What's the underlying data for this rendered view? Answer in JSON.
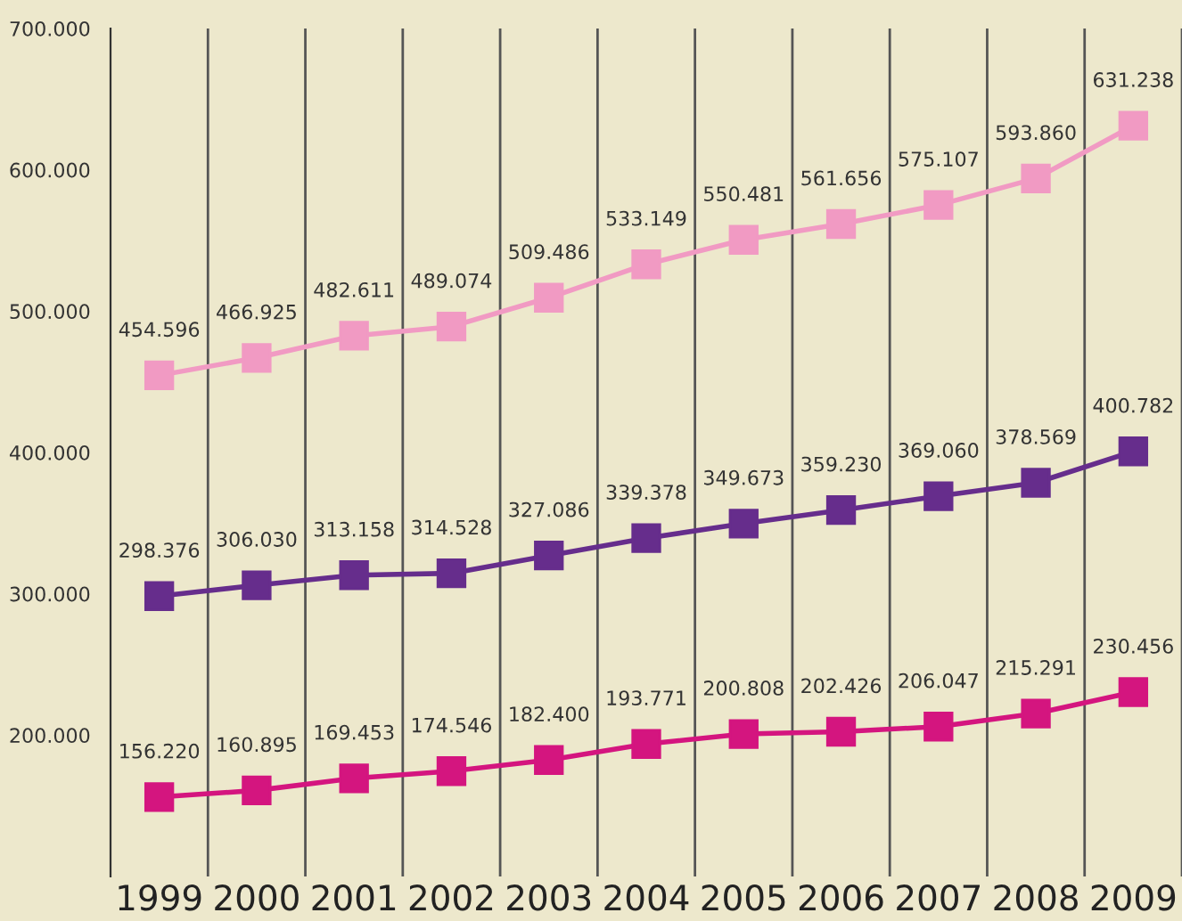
{
  "chart_data": {
    "type": "line",
    "categories": [
      "1999",
      "2000",
      "2001",
      "2002",
      "2003",
      "2004",
      "2005",
      "2006",
      "2007",
      "2008",
      "2009"
    ],
    "ylim": [
      100000,
      700000
    ],
    "yticks": [
      {
        "value": 200000,
        "label": "200.000"
      },
      {
        "value": 300000,
        "label": "300.000"
      },
      {
        "value": 400000,
        "label": "400.000"
      },
      {
        "value": 500000,
        "label": "500.000"
      },
      {
        "value": 600000,
        "label": "600.000"
      },
      {
        "value": 700000,
        "label": "700.000"
      }
    ],
    "grid": "x",
    "marker": "square",
    "line_style": "solid",
    "legend": false,
    "series": [
      {
        "color": "#f19ac3",
        "values": [
          454596,
          466925,
          482611,
          489074,
          509486,
          533149,
          550481,
          561656,
          575107,
          593860,
          631238
        ],
        "value_labels": [
          "454.596",
          "466.925",
          "482.611",
          "489.074",
          "509.486",
          "533.149",
          "550.481",
          "561.656",
          "575.107",
          "593.860",
          "631.238"
        ]
      },
      {
        "color": "#662d8c",
        "values": [
          298376,
          306030,
          313158,
          314528,
          327086,
          339378,
          349673,
          359230,
          369060,
          378569,
          400782
        ],
        "value_labels": [
          "298.376",
          "306.030",
          "313.158",
          "314.528",
          "327.086",
          "339.378",
          "349.673",
          "359.230",
          "369.060",
          "378.569",
          "400.782"
        ]
      },
      {
        "color": "#d4157f",
        "values": [
          156220,
          160895,
          169453,
          174546,
          182400,
          193771,
          200808,
          202426,
          206047,
          215291,
          230456
        ],
        "value_labels": [
          "156.220",
          "160.895",
          "169.453",
          "174.546",
          "182.400",
          "193.771",
          "200.808",
          "202.426",
          "206.047",
          "215.291",
          "230.456"
        ]
      }
    ]
  }
}
